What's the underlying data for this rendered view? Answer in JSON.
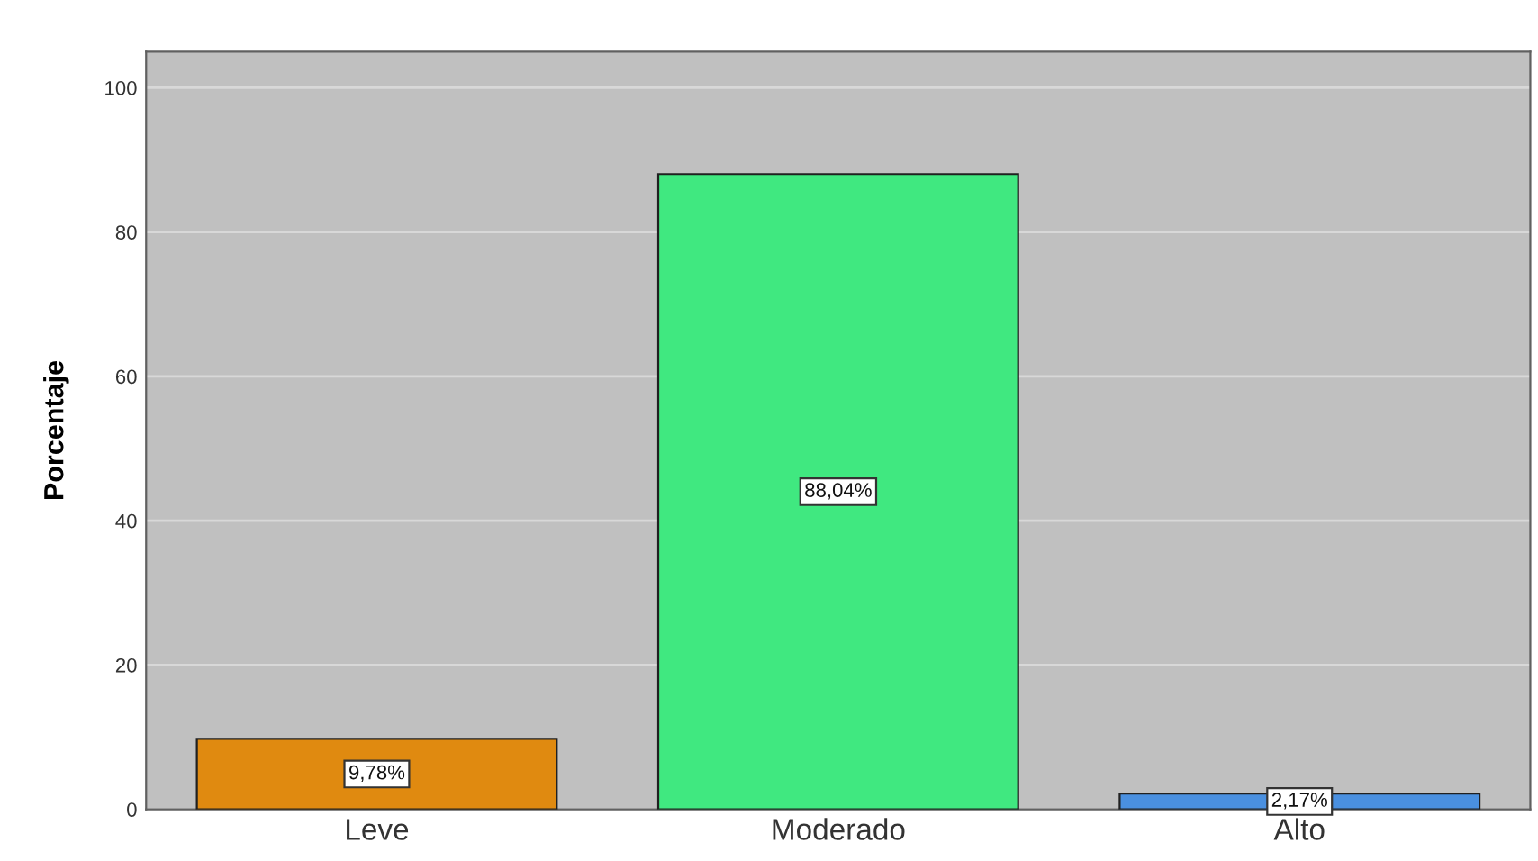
{
  "chart_data": {
    "type": "bar",
    "ylabel": "Porcentaje",
    "categories": [
      "Leve",
      "Moderado",
      "Alto"
    ],
    "values": [
      9.78,
      88.04,
      2.17
    ],
    "colors": [
      "#e08a10",
      "#40e880",
      "#4a90e0"
    ],
    "value_labels": [
      "9,78%",
      "88,04%",
      "2,17%"
    ],
    "ylim": [
      0,
      105
    ],
    "yticks": [
      0,
      20,
      40,
      60,
      80,
      100
    ],
    "grid": "y"
  }
}
